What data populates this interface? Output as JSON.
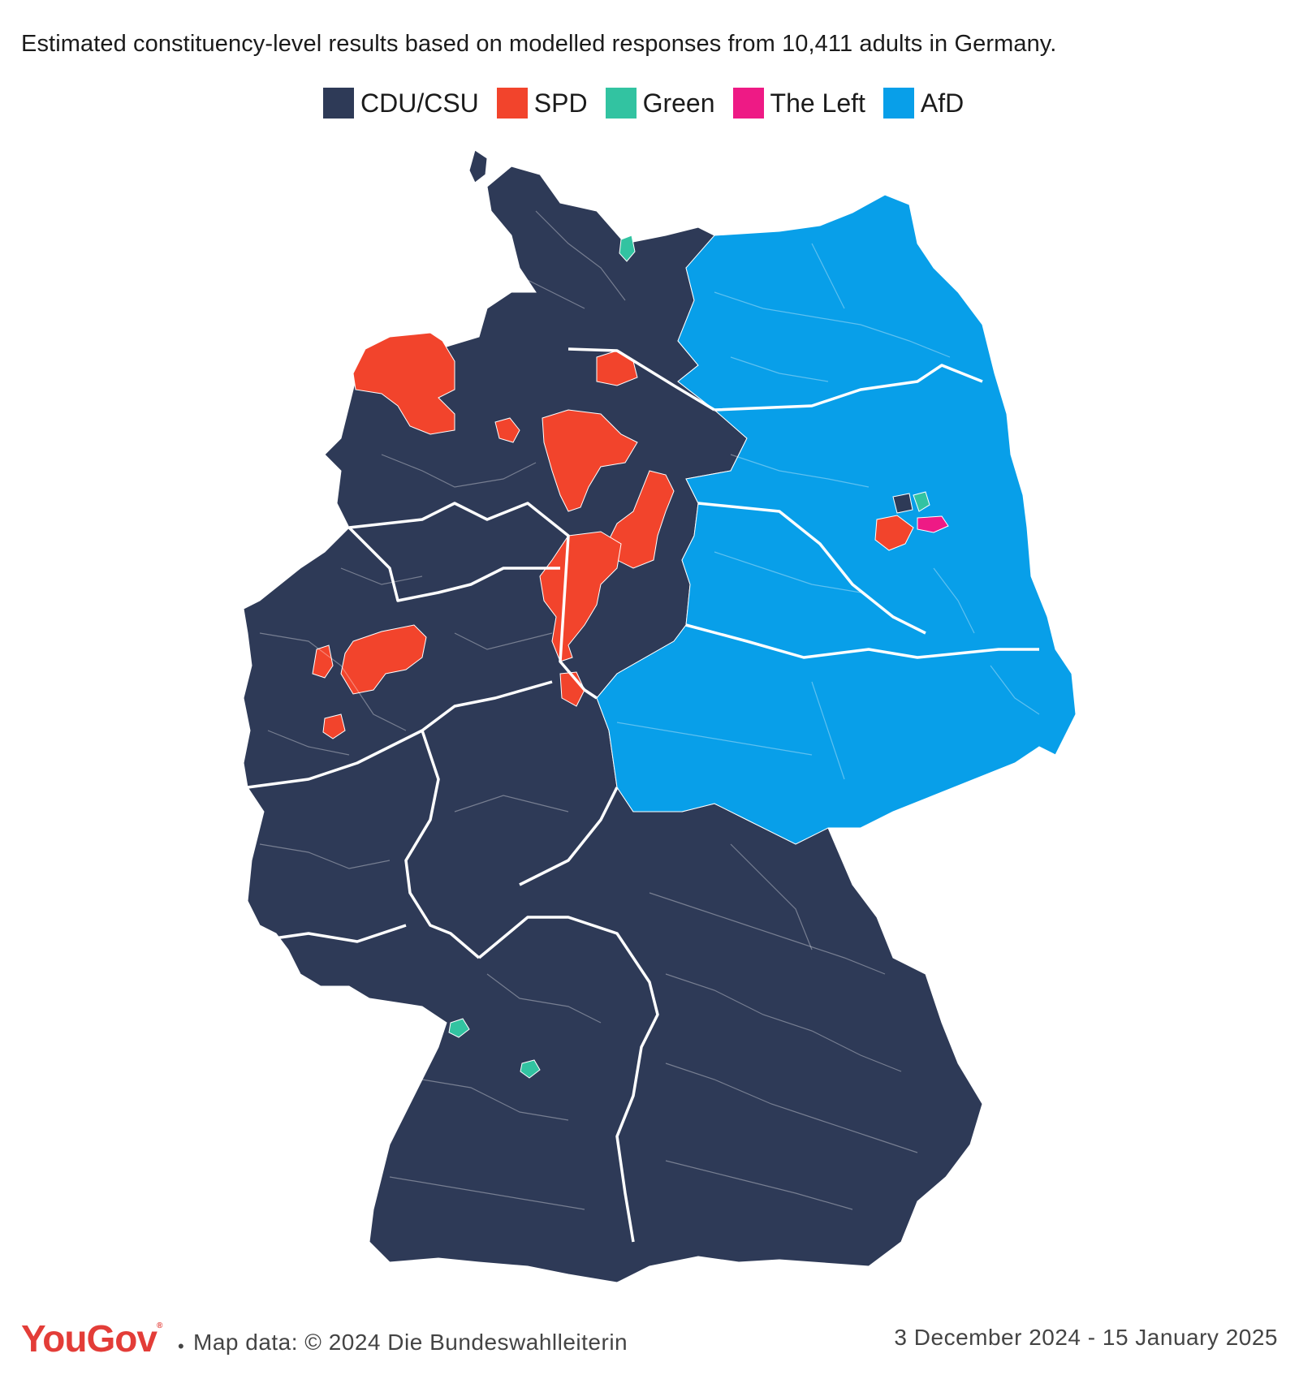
{
  "subtitle": "Estimated constituency-level results based on modelled responses from 10,411 adults in Germany.",
  "legend": [
    {
      "label": "CDU/CSU",
      "color": "#2e3a57"
    },
    {
      "label": "SPD",
      "color": "#f2442c"
    },
    {
      "label": "Green",
      "color": "#32c3a1"
    },
    {
      "label": "The Left",
      "color": "#ee1a85"
    },
    {
      "label": "AfD",
      "color": "#089fe9"
    }
  ],
  "map": {
    "region": "Germany",
    "regions_by_party": {
      "CDU/CSU": "west and south (majority of constituencies)",
      "AfD": "east",
      "SPD": "parts of Lower Saxony, Ruhr area, Bremen/Hamburg area, Berlin area",
      "Green": "isolated constituencies (Kiel area, Karlsruhe area, Stuttgart area, Berlin)",
      "The Left": "Berlin area"
    }
  },
  "footer": {
    "logo": "YouGov",
    "source": "Map data: © 2024 Die Bundeswahlleiterin",
    "dates": "3 December 2024 - 15 January 2025"
  }
}
